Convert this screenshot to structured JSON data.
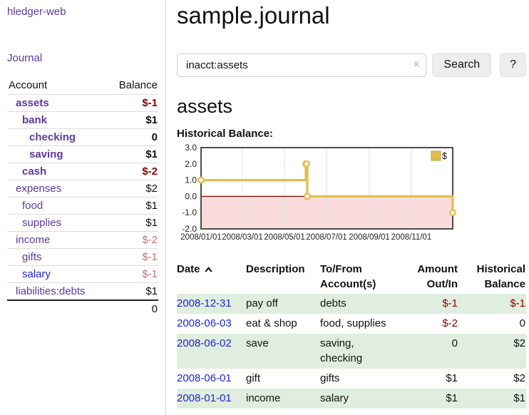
{
  "colors": {
    "link_purple": "#5b3a9c",
    "link_blue": "#2323d6",
    "negative_strong": "#8b0000",
    "negative_soft": "#bf7474",
    "row_stripe_green": "#dfeede",
    "chart_line_gold": "#e4bd4d",
    "chart_negative_region_pink": "#fadcdc",
    "chart_zero_line_red": "#8b0000",
    "chart_border_gray": "#4d4d4d",
    "chart_grid_gray": "#e2e2e2"
  },
  "sidebar": {
    "brand": "hledger-web",
    "journal_link": "Journal",
    "account_header": "Account",
    "balance_header": "Balance",
    "accounts": [
      {
        "name": "assets",
        "depth": 1,
        "bold": true,
        "balance": "$-1",
        "balance_color": "neg",
        "link_color": "purple"
      },
      {
        "name": "bank",
        "depth": 2,
        "bold": true,
        "balance": "$1",
        "balance_color": "pos",
        "link_color": "purple"
      },
      {
        "name": "checking",
        "depth": 3,
        "bold": true,
        "balance": "0",
        "balance_color": "pos",
        "link_color": "purple"
      },
      {
        "name": "saving",
        "depth": 3,
        "bold": true,
        "balance": "$1",
        "balance_color": "pos",
        "link_color": "purple"
      },
      {
        "name": "cash",
        "depth": 2,
        "bold": true,
        "balance": "$-2",
        "balance_color": "neg",
        "link_color": "purple"
      },
      {
        "name": "expenses",
        "depth": 1,
        "bold": false,
        "balance": "$2",
        "balance_color": "pos",
        "link_color": "purple"
      },
      {
        "name": "food",
        "depth": 2,
        "bold": false,
        "balance": "$1",
        "balance_color": "pos",
        "link_color": "purple"
      },
      {
        "name": "supplies",
        "depth": 2,
        "bold": false,
        "balance": "$1",
        "balance_color": "pos",
        "link_color": "purple"
      },
      {
        "name": "income",
        "depth": 1,
        "bold": false,
        "balance": "$-2",
        "balance_color": "negsoft",
        "link_color": "purple"
      },
      {
        "name": "gifts",
        "depth": 2,
        "bold": false,
        "balance": "$-1",
        "balance_color": "negsoft",
        "link_color": "purple"
      },
      {
        "name": "salary",
        "depth": 2,
        "bold": false,
        "balance": "$-1",
        "balance_color": "negsoft",
        "link_color": "blue"
      },
      {
        "name": "liabilities:debts",
        "depth": 1,
        "bold": false,
        "balance": "$1",
        "balance_color": "pos",
        "link_color": "purple"
      }
    ],
    "total": "0"
  },
  "header": {
    "title": "sample.journal"
  },
  "search": {
    "value": "inacct:assets",
    "clear_icon": "×",
    "button_label": "Search",
    "help_label": "?"
  },
  "account_page": {
    "heading": "assets",
    "chart_label": "Historical Balance:"
  },
  "chart_data": {
    "type": "line",
    "title": "Historical Balance",
    "step": "after",
    "series": [
      {
        "name": "$",
        "points": [
          {
            "x": "2008-01-01",
            "y": 1
          },
          {
            "x": "2008-06-01",
            "y": 2
          },
          {
            "x": "2008-06-02",
            "y": 2
          },
          {
            "x": "2008-06-03",
            "y": 0
          },
          {
            "x": "2008-12-31",
            "y": -1
          }
        ]
      }
    ],
    "x_range": [
      "2008-01-01",
      "2008-12-31"
    ],
    "ylim": [
      -2,
      3
    ],
    "y_ticks": [
      {
        "v": 3,
        "label": "3.0"
      },
      {
        "v": 2,
        "label": "2.0"
      },
      {
        "v": 1,
        "label": "1.0"
      },
      {
        "v": 0,
        "label": "0.0"
      },
      {
        "v": -1,
        "label": "-1.0"
      },
      {
        "v": -2,
        "label": "-2.0"
      }
    ],
    "x_ticks": [
      {
        "x": "2008-01-01",
        "label": "2008/01/01"
      },
      {
        "x": "2008-03-01",
        "label": "2008/03/01"
      },
      {
        "x": "2008-05-01",
        "label": "2008/05/01"
      },
      {
        "x": "2008-07-01",
        "label": "2008/07/01"
      },
      {
        "x": "2008-09-01",
        "label": "2008/09/01"
      },
      {
        "x": "2008-11-01",
        "label": "2008/11/01"
      }
    ],
    "legend": {
      "position": "top-right",
      "entries": [
        "$"
      ]
    },
    "grid": "vertical",
    "zero_line": true,
    "negative_region_shaded": true
  },
  "transactions": {
    "headers": {
      "date": "Date",
      "description": "Description",
      "accounts": "To/From Account(s)",
      "amount": "Amount Out/In",
      "balance": "Historical Balance"
    },
    "sort": {
      "column": "date",
      "direction": "ascending"
    },
    "rows": [
      {
        "date": "2008-12-31",
        "description": "pay off",
        "accounts": "debts",
        "amount": "$-1",
        "amount_negative": true,
        "balance": "$-1",
        "balance_negative": true
      },
      {
        "date": "2008-06-03",
        "description": "eat & shop",
        "accounts": "food, supplies",
        "amount": "$-2",
        "amount_negative": true,
        "balance": "0",
        "balance_negative": false
      },
      {
        "date": "2008-06-02",
        "description": "save",
        "accounts": "saving, checking",
        "amount": "0",
        "amount_negative": false,
        "balance": "$2",
        "balance_negative": false
      },
      {
        "date": "2008-06-01",
        "description": "gift",
        "accounts": "gifts",
        "amount": "$1",
        "amount_negative": false,
        "balance": "$2",
        "balance_negative": false
      },
      {
        "date": "2008-01-01",
        "description": "income",
        "accounts": "salary",
        "amount": "$1",
        "amount_negative": false,
        "balance": "$1",
        "balance_negative": false
      }
    ]
  }
}
